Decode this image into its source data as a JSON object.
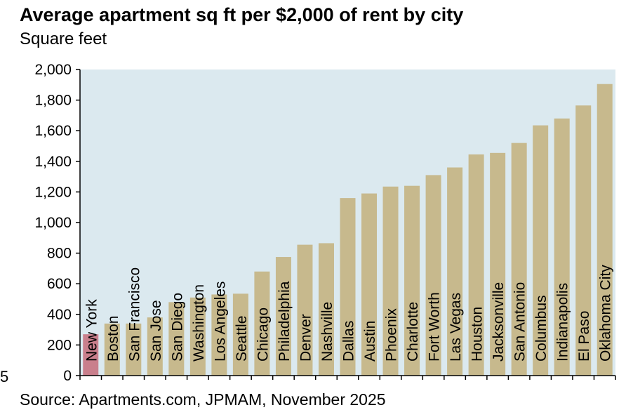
{
  "chart_data": {
    "type": "bar",
    "title": "Average apartment sq ft per $2,000 of rent by city",
    "subtitle": "Square feet",
    "source": "Source: Apartments.com, JPMAM, November 2025",
    "edge_mark": "5",
    "categories": [
      "New York",
      "Boston",
      "San Francisco",
      "San Jose",
      "San Diego",
      "Washington",
      "Los Angeles",
      "Seattle",
      "Chicago",
      "Philadelphia",
      "Denver",
      "Nashville",
      "Dallas",
      "Austin",
      "Phoenix",
      "Charlotte",
      "Fort Worth",
      "Las Vegas",
      "Houston",
      "Jacksonville",
      "San Antonio",
      "Columbus",
      "Indianapolis",
      "El Paso",
      "Oklahoma City"
    ],
    "values": [
      270,
      340,
      340,
      380,
      480,
      510,
      530,
      535,
      680,
      775,
      855,
      865,
      1160,
      1190,
      1235,
      1240,
      1310,
      1360,
      1445,
      1455,
      1520,
      1635,
      1680,
      1765,
      1905
    ],
    "ylim": [
      0,
      2000
    ],
    "yticks": [
      0,
      200,
      400,
      600,
      800,
      1000,
      1200,
      1400,
      1600,
      1800,
      2000
    ],
    "ytick_labels": [
      "0",
      "200",
      "400",
      "600",
      "800",
      "1,000",
      "1,200",
      "1,400",
      "1,600",
      "1,800",
      "2,000"
    ],
    "grid": false,
    "colors": {
      "highlight": "#c97f8c",
      "bar": "#c7b98d",
      "plot_background": "#dbe9ef"
    }
  }
}
